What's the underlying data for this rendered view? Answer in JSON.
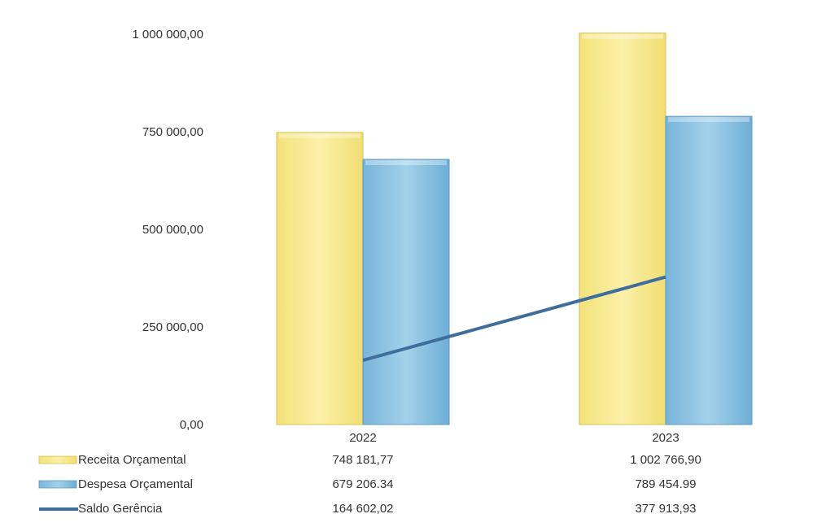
{
  "chart_data": {
    "type": "bar",
    "categories": [
      "2022",
      "2023"
    ],
    "ylim": [
      0,
      1000000
    ],
    "ytick_values": [
      0,
      250000,
      500000,
      750000,
      1000000
    ],
    "ytick_labels": [
      "0,00",
      "250 000,00",
      "500 000,00",
      "750 000,00",
      "1 000 000,00"
    ],
    "grid": false,
    "legend_position": "bottom data table",
    "series": [
      {
        "name": "Receita Orçamental",
        "kind": "bar",
        "color": "#f7e98e",
        "values": [
          748181.77,
          1002766.9
        ],
        "value_labels": [
          "748 181,77",
          "1 002 766,90"
        ]
      },
      {
        "name": "Despesa Orçamental",
        "kind": "bar",
        "color": "#8ec5e3",
        "values": [
          679206.34,
          789454.99
        ],
        "value_labels": [
          "679 206.34",
          "789 454.99"
        ]
      },
      {
        "name": "Saldo Gerência",
        "kind": "line",
        "color": "#3f6d9e",
        "values": [
          164602.02,
          377913.93
        ],
        "value_labels": [
          "164 602,02",
          "377 913,93"
        ]
      }
    ]
  }
}
